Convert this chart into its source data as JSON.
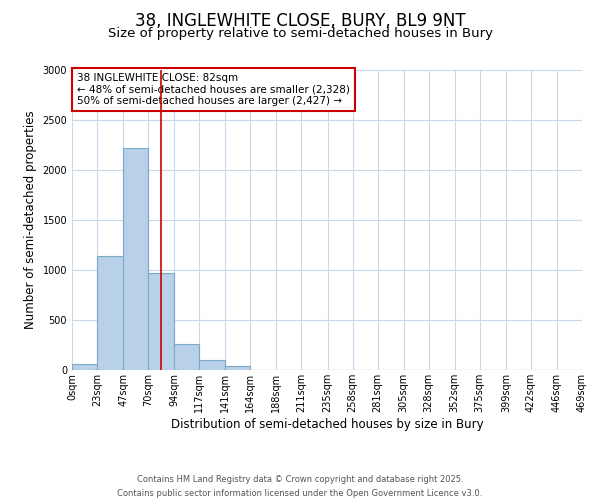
{
  "title": "38, INGLEWHITE CLOSE, BURY, BL9 9NT",
  "subtitle": "Size of property relative to semi-detached houses in Bury",
  "xlabel": "Distribution of semi-detached houses by size in Bury",
  "ylabel": "Number of semi-detached properties",
  "bar_values": [
    60,
    1140,
    2220,
    970,
    265,
    105,
    40,
    5,
    5,
    0,
    0,
    0,
    0,
    0,
    0,
    0,
    0,
    0,
    0,
    0
  ],
  "bin_edges": [
    0,
    23,
    47,
    70,
    94,
    117,
    141,
    164,
    188,
    211,
    235,
    258,
    281,
    305,
    328,
    352,
    375,
    399,
    422,
    446,
    469
  ],
  "tick_labels": [
    "0sqm",
    "23sqm",
    "47sqm",
    "70sqm",
    "94sqm",
    "117sqm",
    "141sqm",
    "164sqm",
    "188sqm",
    "211sqm",
    "235sqm",
    "258sqm",
    "281sqm",
    "305sqm",
    "328sqm",
    "352sqm",
    "375sqm",
    "399sqm",
    "422sqm",
    "446sqm",
    "469sqm"
  ],
  "bar_color": "#b8d0e8",
  "bar_edgecolor": "#7aaac8",
  "bar_linewidth": 0.8,
  "vline_x": 82,
  "vline_color": "#cc0000",
  "ylim": [
    0,
    3000
  ],
  "yticks": [
    0,
    500,
    1000,
    1500,
    2000,
    2500,
    3000
  ],
  "legend_title": "38 INGLEWHITE CLOSE: 82sqm",
  "legend_line1": "← 48% of semi-detached houses are smaller (2,328)",
  "legend_line2": "50% of semi-detached houses are larger (2,427) →",
  "legend_box_color": "#cc0000",
  "footer_line1": "Contains HM Land Registry data © Crown copyright and database right 2025.",
  "footer_line2": "Contains public sector information licensed under the Open Government Licence v3.0.",
  "bg_color": "#ffffff",
  "grid_color": "#c8d8e8",
  "title_fontsize": 12,
  "subtitle_fontsize": 9.5,
  "axis_label_fontsize": 8.5,
  "tick_fontsize": 7,
  "legend_fontsize": 7.5,
  "footer_fontsize": 6
}
